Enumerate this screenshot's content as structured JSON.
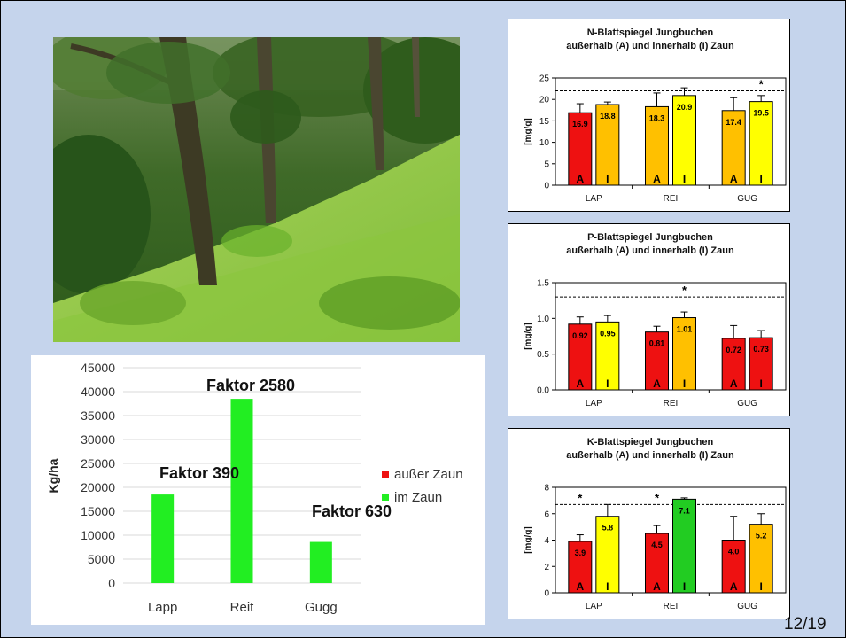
{
  "page_number": "12/19",
  "photo": {
    "subject": "beech-forest-slope"
  },
  "chart_data": [
    {
      "id": "biomass",
      "type": "bar",
      "title": "",
      "ylabel": "Kg/ha",
      "xlabel": "",
      "categories": [
        "Lapp",
        "Reit",
        "Gugg"
      ],
      "ylim": [
        0,
        45000
      ],
      "yticks": [
        "0",
        "5000",
        "10000",
        "15000",
        "20000",
        "25000",
        "30000",
        "35000",
        "40000",
        "45000"
      ],
      "grid": true,
      "legend_position": "right",
      "series": [
        {
          "name": "außer Zaun",
          "color": "#ee1111",
          "values": [
            0,
            0,
            0
          ]
        },
        {
          "name": "im Zaun",
          "color": "#22ee22",
          "values": [
            18500,
            38500,
            8600
          ]
        }
      ],
      "annotations": [
        "Faktor 390",
        "Faktor 2580",
        "Faktor 630"
      ]
    },
    {
      "id": "n",
      "type": "bar",
      "title": [
        "N-Blattspiegel Jungbuchen",
        "außerhalb (A) und innerhalb (I) Zaun"
      ],
      "ylabel": "[mg/g]",
      "xlabel": "",
      "categories": [
        "LAP",
        "REI",
        "GUG"
      ],
      "ylim": [
        0,
        25
      ],
      "yticks": [
        "0",
        "5",
        "10",
        "15",
        "20",
        "25"
      ],
      "threshold": 22,
      "bars": [
        {
          "cat": 0,
          "group": "A",
          "value": 16.9,
          "err": 2.1,
          "color": "#ee1111",
          "label": "16.9",
          "star": false
        },
        {
          "cat": 0,
          "group": "I",
          "value": 18.8,
          "err": 0.6,
          "color": "#ffc000",
          "label": "18.8",
          "star": false
        },
        {
          "cat": 1,
          "group": "A",
          "value": 18.3,
          "err": 3.2,
          "color": "#ffc000",
          "label": "18.3",
          "star": false
        },
        {
          "cat": 1,
          "group": "I",
          "value": 20.9,
          "err": 1.8,
          "color": "#ffff00",
          "label": "20.9",
          "star": false
        },
        {
          "cat": 2,
          "group": "A",
          "value": 17.4,
          "err": 3.0,
          "color": "#ffc000",
          "label": "17.4",
          "star": false
        },
        {
          "cat": 2,
          "group": "I",
          "value": 19.5,
          "err": 1.4,
          "color": "#ffff00",
          "label": "19.5",
          "star": true
        }
      ]
    },
    {
      "id": "p",
      "type": "bar",
      "title": [
        "P-Blattspiegel Jungbuchen",
        "außerhalb (A) und innerhalb (I) Zaun"
      ],
      "ylabel": "[mg/g]",
      "xlabel": "",
      "categories": [
        "LAP",
        "REI",
        "GUG"
      ],
      "ylim": [
        0,
        1.5
      ],
      "yticks": [
        "0.0",
        "0.5",
        "1.0",
        "1.5"
      ],
      "threshold": 1.3,
      "bars": [
        {
          "cat": 0,
          "group": "A",
          "value": 0.92,
          "err": 0.1,
          "color": "#ee1111",
          "label": "0.92",
          "star": false
        },
        {
          "cat": 0,
          "group": "I",
          "value": 0.95,
          "err": 0.09,
          "color": "#ffff00",
          "label": "0.95",
          "star": false
        },
        {
          "cat": 1,
          "group": "A",
          "value": 0.81,
          "err": 0.08,
          "color": "#ee1111",
          "label": "0.81",
          "star": false
        },
        {
          "cat": 1,
          "group": "I",
          "value": 1.01,
          "err": 0.08,
          "color": "#ffc000",
          "label": "1.01",
          "star": true
        },
        {
          "cat": 2,
          "group": "A",
          "value": 0.72,
          "err": 0.18,
          "color": "#ee1111",
          "label": "0.72",
          "star": false
        },
        {
          "cat": 2,
          "group": "I",
          "value": 0.73,
          "err": 0.1,
          "color": "#ee1111",
          "label": "0.73",
          "star": false
        }
      ]
    },
    {
      "id": "k",
      "type": "bar",
      "title": [
        "K-Blattspiegel Jungbuchen",
        "außerhalb (A) und innerhalb (I) Zaun"
      ],
      "ylabel": "[mg/g]",
      "xlabel": "",
      "categories": [
        "LAP",
        "REI",
        "GUG"
      ],
      "ylim": [
        0,
        8
      ],
      "yticks": [
        "0",
        "2",
        "4",
        "6",
        "8"
      ],
      "threshold": 6.7,
      "bars": [
        {
          "cat": 0,
          "group": "A",
          "value": 3.9,
          "err": 0.5,
          "color": "#ee1111",
          "label": "3.9",
          "star": true
        },
        {
          "cat": 0,
          "group": "I",
          "value": 5.8,
          "err": 0.9,
          "color": "#ffff00",
          "label": "5.8",
          "star": false
        },
        {
          "cat": 1,
          "group": "A",
          "value": 4.5,
          "err": 0.6,
          "color": "#ee1111",
          "label": "4.5",
          "star": true
        },
        {
          "cat": 1,
          "group": "I",
          "value": 7.1,
          "err": 0.1,
          "color": "#22cc22",
          "label": "7.1",
          "star": false
        },
        {
          "cat": 2,
          "group": "A",
          "value": 4.0,
          "err": 1.8,
          "color": "#ee1111",
          "label": "4.0",
          "star": false
        },
        {
          "cat": 2,
          "group": "I",
          "value": 5.2,
          "err": 0.8,
          "color": "#ffc000",
          "label": "5.2",
          "star": false
        }
      ]
    }
  ]
}
